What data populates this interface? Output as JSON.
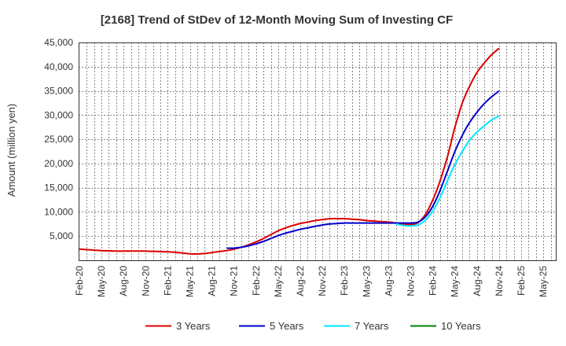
{
  "chart_data": {
    "type": "line",
    "title": "[2168]  Trend of StDev of 12-Month Moving Sum of Investing CF",
    "ylabel": "Amount (million yen)",
    "xlabel": "",
    "ylim": [
      0,
      45000
    ],
    "y_ticks": [
      5000,
      10000,
      15000,
      20000,
      25000,
      30000,
      35000,
      40000,
      45000
    ],
    "y_tick_labels": [
      "5,000",
      "10,000",
      "15,000",
      "20,000",
      "25,000",
      "30,000",
      "35,000",
      "40,000",
      "45,000"
    ],
    "x_start": "Feb-20",
    "x_tick_labels": [
      "Feb-20",
      "May-20",
      "Aug-20",
      "Nov-20",
      "Feb-21",
      "May-21",
      "Aug-21",
      "Nov-21",
      "Feb-22",
      "May-22",
      "Aug-22",
      "Nov-22",
      "Feb-23",
      "May-23",
      "Aug-23",
      "Nov-23",
      "Feb-24",
      "May-24",
      "Aug-24",
      "Nov-24",
      "Feb-25",
      "May-25"
    ],
    "grid": true,
    "legend_position": "bottom",
    "series": [
      {
        "name": "3 Years",
        "color": "#dd0000",
        "points": [
          [
            "Feb-20",
            2300
          ],
          [
            "Mar-20",
            2200
          ],
          [
            "Apr-20",
            2100
          ],
          [
            "May-20",
            2000
          ],
          [
            "Jun-20",
            1950
          ],
          [
            "Jul-20",
            1900
          ],
          [
            "Aug-20",
            1900
          ],
          [
            "Sep-20",
            1900
          ],
          [
            "Oct-20",
            1900
          ],
          [
            "Nov-20",
            1900
          ],
          [
            "Dec-20",
            1850
          ],
          [
            "Jan-21",
            1800
          ],
          [
            "Feb-21",
            1750
          ],
          [
            "Mar-21",
            1650
          ],
          [
            "Apr-21",
            1500
          ],
          [
            "May-21",
            1350
          ],
          [
            "Jun-21",
            1300
          ],
          [
            "Jul-21",
            1400
          ],
          [
            "Aug-21",
            1600
          ],
          [
            "Sep-21",
            1800
          ],
          [
            "Oct-21",
            2000
          ],
          [
            "Nov-21",
            2300
          ],
          [
            "Dec-21",
            2700
          ],
          [
            "Jan-22",
            3200
          ],
          [
            "Feb-22",
            3800
          ],
          [
            "Mar-22",
            4500
          ],
          [
            "Apr-22",
            5300
          ],
          [
            "May-22",
            6100
          ],
          [
            "Jun-22",
            6700
          ],
          [
            "Jul-22",
            7200
          ],
          [
            "Aug-22",
            7600
          ],
          [
            "Sep-22",
            7900
          ],
          [
            "Oct-22",
            8200
          ],
          [
            "Nov-22",
            8400
          ],
          [
            "Dec-22",
            8600
          ],
          [
            "Jan-23",
            8600
          ],
          [
            "Feb-23",
            8600
          ],
          [
            "Mar-23",
            8500
          ],
          [
            "Apr-23",
            8400
          ],
          [
            "May-23",
            8200
          ],
          [
            "Jun-23",
            8100
          ],
          [
            "Jul-23",
            8000
          ],
          [
            "Aug-23",
            7900
          ],
          [
            "Sep-23",
            7700
          ],
          [
            "Oct-23",
            7500
          ],
          [
            "Nov-23",
            7400
          ],
          [
            "Dec-23",
            7800
          ],
          [
            "Jan-24",
            9500
          ],
          [
            "Feb-24",
            12500
          ],
          [
            "Mar-24",
            16500
          ],
          [
            "Apr-24",
            21500
          ],
          [
            "May-24",
            27500
          ],
          [
            "Jun-24",
            32500
          ],
          [
            "Jul-24",
            36000
          ],
          [
            "Aug-24",
            38800
          ],
          [
            "Sep-24",
            40800
          ],
          [
            "Oct-24",
            42500
          ],
          [
            "Nov-24",
            43800
          ]
        ]
      },
      {
        "name": "5 Years",
        "color": "#0000cc",
        "points": [
          [
            "Oct-21",
            2500
          ],
          [
            "Nov-21",
            2500
          ],
          [
            "Dec-21",
            2700
          ],
          [
            "Jan-22",
            3000
          ],
          [
            "Feb-22",
            3400
          ],
          [
            "Mar-22",
            3900
          ],
          [
            "Apr-22",
            4500
          ],
          [
            "May-22",
            5100
          ],
          [
            "Jun-22",
            5600
          ],
          [
            "Jul-22",
            6000
          ],
          [
            "Aug-22",
            6400
          ],
          [
            "Sep-22",
            6700
          ],
          [
            "Oct-22",
            7000
          ],
          [
            "Nov-22",
            7300
          ],
          [
            "Dec-22",
            7500
          ],
          [
            "Jan-23",
            7600
          ],
          [
            "Feb-23",
            7700
          ],
          [
            "Mar-23",
            7700
          ],
          [
            "Apr-23",
            7700
          ],
          [
            "May-23",
            7700
          ],
          [
            "Jun-23",
            7700
          ],
          [
            "Jul-23",
            7700
          ],
          [
            "Aug-23",
            7700
          ],
          [
            "Sep-23",
            7700
          ],
          [
            "Oct-23",
            7700
          ],
          [
            "Nov-23",
            7700
          ],
          [
            "Dec-23",
            7900
          ],
          [
            "Jan-24",
            9000
          ],
          [
            "Feb-24",
            11200
          ],
          [
            "Mar-24",
            14500
          ],
          [
            "Apr-24",
            18500
          ],
          [
            "May-24",
            22500
          ],
          [
            "Jun-24",
            25800
          ],
          [
            "Jul-24",
            28500
          ],
          [
            "Aug-24",
            30600
          ],
          [
            "Sep-24",
            32400
          ],
          [
            "Oct-24",
            33800
          ],
          [
            "Nov-24",
            35000
          ]
        ]
      },
      {
        "name": "7 Years",
        "color": "#00e5ff",
        "points": [
          [
            "Sep-23",
            7500
          ],
          [
            "Oct-23",
            7200
          ],
          [
            "Nov-23",
            7100
          ],
          [
            "Dec-23",
            7300
          ],
          [
            "Jan-24",
            8300
          ],
          [
            "Feb-24",
            10200
          ],
          [
            "Mar-24",
            13000
          ],
          [
            "Apr-24",
            16500
          ],
          [
            "May-24",
            19800
          ],
          [
            "Jun-24",
            22500
          ],
          [
            "Jul-24",
            24800
          ],
          [
            "Aug-24",
            26500
          ],
          [
            "Sep-24",
            27800
          ],
          [
            "Oct-24",
            29000
          ],
          [
            "Nov-24",
            29800
          ]
        ]
      },
      {
        "name": "10 Years",
        "color": "#008000",
        "points": []
      }
    ]
  }
}
